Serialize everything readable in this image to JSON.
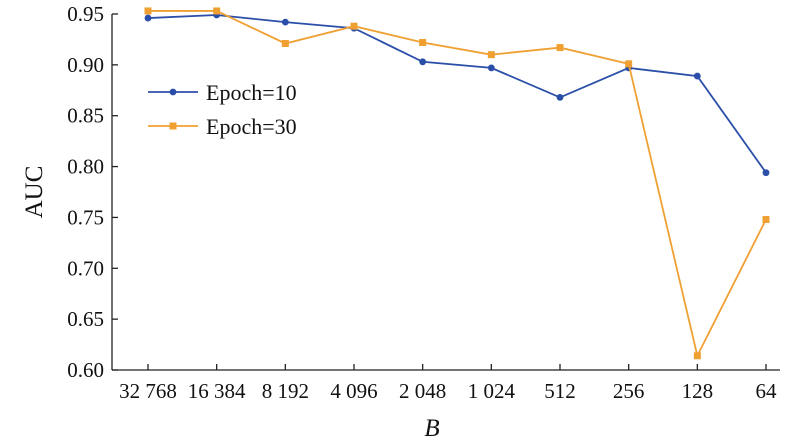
{
  "chart_data": {
    "type": "line",
    "xlabel": "B",
    "ylabel": "AUC",
    "categories": [
      "32 768",
      "16 384",
      "8 192",
      "4 096",
      "2 048",
      "1 024",
      "512",
      "256",
      "128",
      "64"
    ],
    "ylim": [
      0.6,
      0.95
    ],
    "yticks": [
      "0.60",
      "0.65",
      "0.70",
      "0.75",
      "0.80",
      "0.85",
      "0.90",
      "0.95"
    ],
    "grid": false,
    "legend_position": "center-left",
    "series": [
      {
        "name": "Epoch=10",
        "color": "#2b4fa8",
        "marker": "circle",
        "values": [
          0.946,
          0.949,
          0.942,
          0.936,
          0.903,
          0.897,
          0.868,
          0.897,
          0.889,
          0.794
        ]
      },
      {
        "name": "Epoch=30",
        "color": "#f0a032",
        "marker": "square",
        "values": [
          0.953,
          0.953,
          0.921,
          0.938,
          0.922,
          0.91,
          0.917,
          0.901,
          0.614,
          0.748
        ]
      }
    ]
  }
}
